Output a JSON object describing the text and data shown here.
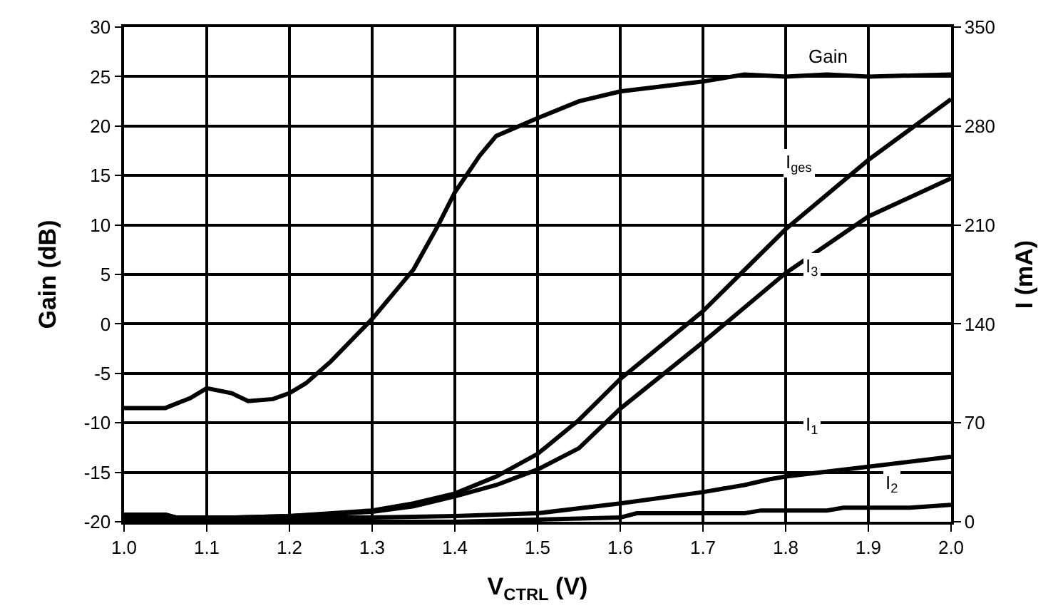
{
  "chart_data": {
    "type": "line",
    "xlabel": "V$_{CTRL}$ (V)",
    "ylabel": "Gain (dB)",
    "y2label": "I (mA)",
    "xlim": [
      1.0,
      2.0
    ],
    "xticks": [
      {
        "value": 1.0,
        "label": "1.0"
      },
      1.1,
      1.2,
      1.3,
      1.4,
      1.5,
      1.6,
      1.7,
      1.8,
      1.9,
      {
        "value": 2.0,
        "label": "2.0"
      }
    ],
    "ylim": [
      -20,
      30
    ],
    "yticks": [
      -20,
      -15,
      -10,
      -5,
      0,
      5,
      10,
      15,
      20,
      25,
      30
    ],
    "y2lim": [
      0,
      350
    ],
    "y2ticks": [
      0,
      70,
      140,
      210,
      280,
      350
    ],
    "grid": true,
    "legend": false,
    "marker": "none",
    "line_style": "solid",
    "series": [
      {
        "name": "Gain",
        "color": "#000000",
        "x": [
          1.0,
          1.05,
          1.08,
          1.1,
          1.13,
          1.15,
          1.18,
          1.2,
          1.22,
          1.25,
          1.3,
          1.33,
          1.35,
          1.38,
          1.4,
          1.43,
          1.45,
          1.5,
          1.55,
          1.6,
          1.7,
          1.75,
          1.8,
          1.85,
          1.9,
          2.0
        ],
        "values": [
          -8.5,
          -8.5,
          -7.5,
          -6.5,
          -7,
          -7.8,
          -7.6,
          -7,
          -6,
          -3.8,
          0.5,
          3.5,
          5.5,
          10,
          13.3,
          17,
          19,
          20.8,
          22.5,
          23.5,
          24.5,
          25.2,
          25,
          25.2,
          25,
          25.2
        ]
      },
      {
        "name": "I$_{ges}$",
        "color": "#000000",
        "axis": "y2",
        "x": [
          1.0,
          1.05,
          1.07,
          1.2,
          1.3,
          1.35,
          1.4,
          1.45,
          1.5,
          1.55,
          1.6,
          1.7,
          1.8,
          1.9,
          2.0
        ],
        "values": [
          5,
          5,
          2,
          4,
          8,
          13,
          20,
          32,
          48,
          72,
          101,
          149,
          207,
          256,
          299
        ]
      },
      {
        "name": "I$_{3}$",
        "color": "#000000",
        "axis": "y2",
        "x": [
          1.0,
          1.05,
          1.07,
          1.2,
          1.3,
          1.35,
          1.4,
          1.45,
          1.5,
          1.55,
          1.6,
          1.7,
          1.8,
          1.9,
          2.0
        ],
        "values": [
          5,
          5,
          2,
          4,
          7,
          11,
          18,
          26,
          37,
          52,
          80,
          127,
          176,
          216,
          243
        ]
      },
      {
        "name": "I$_{1}$",
        "color": "#000000",
        "axis": "y2",
        "x": [
          1.0,
          1.3,
          1.4,
          1.5,
          1.6,
          1.7,
          1.75,
          1.78,
          1.8,
          1.9,
          2.0
        ],
        "values": [
          3,
          3,
          4,
          6,
          13,
          21,
          26,
          30,
          32,
          39,
          46
        ]
      },
      {
        "name": "I$_{2}$",
        "color": "#000000",
        "axis": "y2",
        "x": [
          1.0,
          1.4,
          1.6,
          1.62,
          1.75,
          1.77,
          1.85,
          1.87,
          1.95,
          2.0
        ],
        "values": [
          0,
          0,
          3,
          6,
          6,
          8,
          8,
          10,
          10,
          12
        ]
      }
    ]
  }
}
